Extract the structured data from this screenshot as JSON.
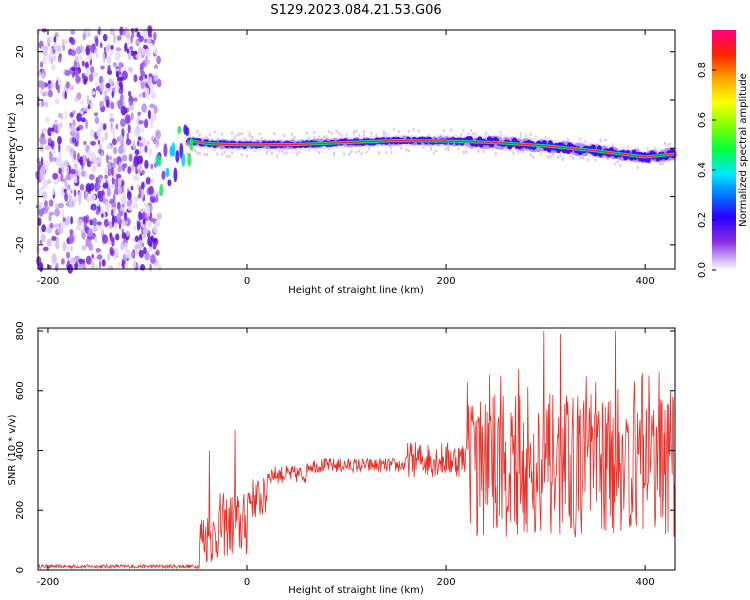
{
  "figure_title": "S129.2023.084.21.53.G06",
  "colors": {
    "snr_line": "#e8302a",
    "spectro_bg": "#ffffff"
  },
  "chart_data": [
    {
      "type": "heatmap",
      "title": "",
      "xlabel": "Height of straight line (km)",
      "ylabel": "Frequency (Hz)",
      "xlim": [
        -210,
        430
      ],
      "ylim": [
        -25,
        24.5
      ],
      "xticks": [
        -200,
        0,
        200,
        400
      ],
      "yticks": [
        20,
        10,
        0,
        -10,
        -20
      ],
      "noise_region_km": [
        -210,
        -88
      ],
      "signal_track": [
        {
          "x": -85,
          "f": -5.0
        },
        {
          "x": -75,
          "f": -3.0
        },
        {
          "x": -65,
          "f": 1.0
        },
        {
          "x": -55,
          "f": 1.5
        },
        {
          "x": -40,
          "f": 1.0
        },
        {
          "x": -20,
          "f": 0.8
        },
        {
          "x": 0,
          "f": 0.7
        },
        {
          "x": 50,
          "f": 0.8
        },
        {
          "x": 100,
          "f": 1.2
        },
        {
          "x": 150,
          "f": 1.6
        },
        {
          "x": 200,
          "f": 1.5
        },
        {
          "x": 250,
          "f": 1.2
        },
        {
          "x": 300,
          "f": 0.5
        },
        {
          "x": 350,
          "f": -0.5
        },
        {
          "x": 400,
          "f": -1.8
        },
        {
          "x": 430,
          "f": -1.2
        }
      ],
      "colorbar": {
        "label": "Normalized spectral amplitude",
        "ticks": [
          "0.0",
          "0.2",
          "0.4",
          "0.6",
          "0.8"
        ],
        "tick_values": [
          0,
          0.2,
          0.4,
          0.6,
          0.8
        ],
        "range": [
          0,
          0.96
        ]
      }
    },
    {
      "type": "line",
      "title": "",
      "xlabel": "Height of straight line (km)",
      "ylabel": "SNR (10 * v/v)",
      "xlim": [
        -210,
        430
      ],
      "ylim": [
        0,
        810
      ],
      "xticks": [
        -200,
        0,
        200,
        400
      ],
      "yticks": [
        0,
        200,
        400,
        600,
        800
      ],
      "series": [
        {
          "name": "SNR",
          "segments": [
            {
              "x_start": -210,
              "x_end": -48,
              "mean": 12,
              "spread": 6
            },
            {
              "x_start": -48,
              "x_end": -30,
              "mean": 110,
              "spread": 90
            },
            {
              "x_start": -30,
              "x_end": 0,
              "mean": 150,
              "spread": 110
            },
            {
              "x_start": 0,
              "x_end": 20,
              "mean": 240,
              "spread": 70
            },
            {
              "x_start": 20,
              "x_end": 60,
              "mean": 320,
              "spread": 30
            },
            {
              "x_start": 60,
              "x_end": 160,
              "mean": 350,
              "spread": 25
            },
            {
              "x_start": 160,
              "x_end": 220,
              "mean": 370,
              "spread": 60
            },
            {
              "x_start": 220,
              "x_end": 430,
              "mean": 350,
              "spread": 240
            }
          ],
          "peaks": [
            {
              "x": -38,
              "y": 400
            },
            {
              "x": -12,
              "y": 470
            },
            {
              "x": 255,
              "y": 650
            },
            {
              "x": 298,
              "y": 800
            },
            {
              "x": 315,
              "y": 790
            },
            {
              "x": 370,
              "y": 800
            },
            {
              "x": 404,
              "y": 650
            },
            {
              "x": 428,
              "y": 580
            }
          ]
        }
      ]
    }
  ]
}
